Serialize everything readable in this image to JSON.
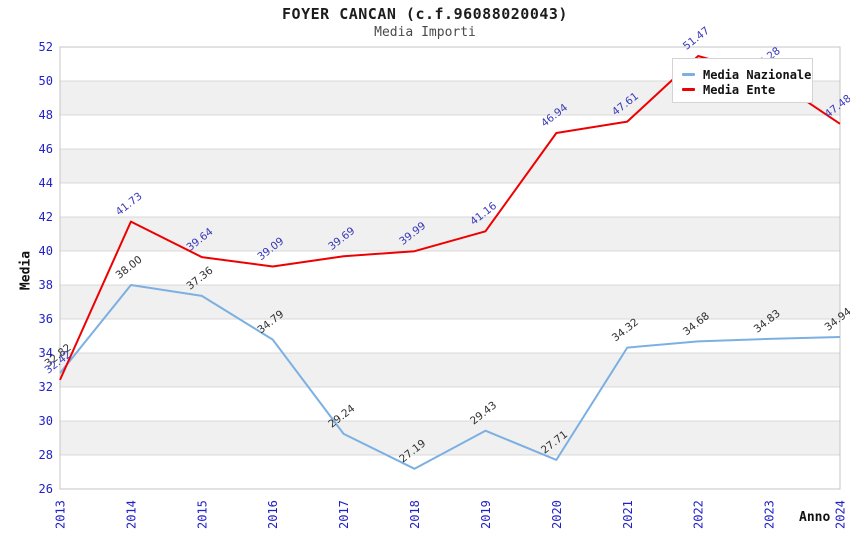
{
  "header": {
    "title": "FOYER CANCAN (c.f.96088020043)",
    "subtitle": "Media Importi"
  },
  "axes": {
    "y_title": "Media",
    "x_title": "Anno"
  },
  "legend": {
    "items": [
      {
        "label": "Media Nazionale",
        "color": "#7cb0e2"
      },
      {
        "label": "Media Ente",
        "color": "#ee0000"
      }
    ]
  },
  "chart_data": {
    "type": "line",
    "title": "FOYER CANCAN (c.f.96088020043)",
    "subtitle": "Media Importi",
    "xlabel": "Anno",
    "ylabel": "Media",
    "x": [
      "2013",
      "2014",
      "2015",
      "2016",
      "2017",
      "2018",
      "2019",
      "2020",
      "2021",
      "2022",
      "2023",
      "2024"
    ],
    "series": [
      {
        "name": "Media Nazionale",
        "color": "#7cb0e2",
        "label_color": "#303030",
        "values": [
          32.82,
          38.0,
          37.36,
          34.79,
          29.24,
          27.19,
          29.43,
          27.71,
          34.32,
          34.68,
          34.83,
          34.94
        ]
      },
      {
        "name": "Media Ente",
        "color": "#ee0000",
        "label_color": "#3939b8",
        "values": [
          32.42,
          41.73,
          39.64,
          39.09,
          39.69,
          39.99,
          41.16,
          46.94,
          47.61,
          51.47,
          50.28,
          47.48
        ]
      }
    ],
    "ylim": [
      26,
      52
    ],
    "ytick_step": 2,
    "grid": true,
    "band_color": "#f0f0f0",
    "grid_color": "#d9d9d9",
    "border_color": "#c4c4c4",
    "tick_color": "#2121c8",
    "legend_position": "top-right"
  }
}
